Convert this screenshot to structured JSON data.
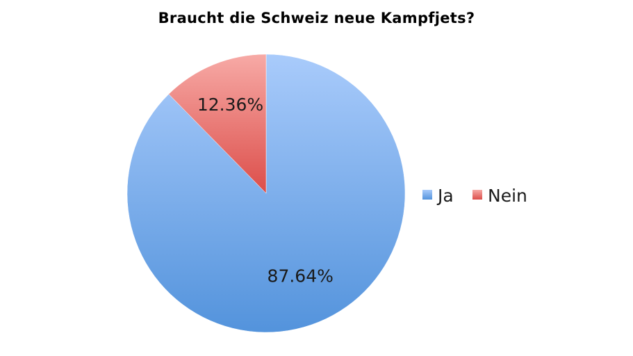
{
  "chart_data": {
    "type": "pie",
    "title": "Braucht die Schweiz neue Kampfjets?",
    "categories": [
      "Ja",
      "Nein"
    ],
    "values": [
      87.64,
      12.36
    ],
    "data_labels": [
      "87.64%",
      "12.36%"
    ],
    "colors": [
      "#5b9bd5",
      "#e05a58"
    ],
    "legend": {
      "position": "right",
      "entries": [
        "Ja",
        "Nein"
      ]
    }
  }
}
